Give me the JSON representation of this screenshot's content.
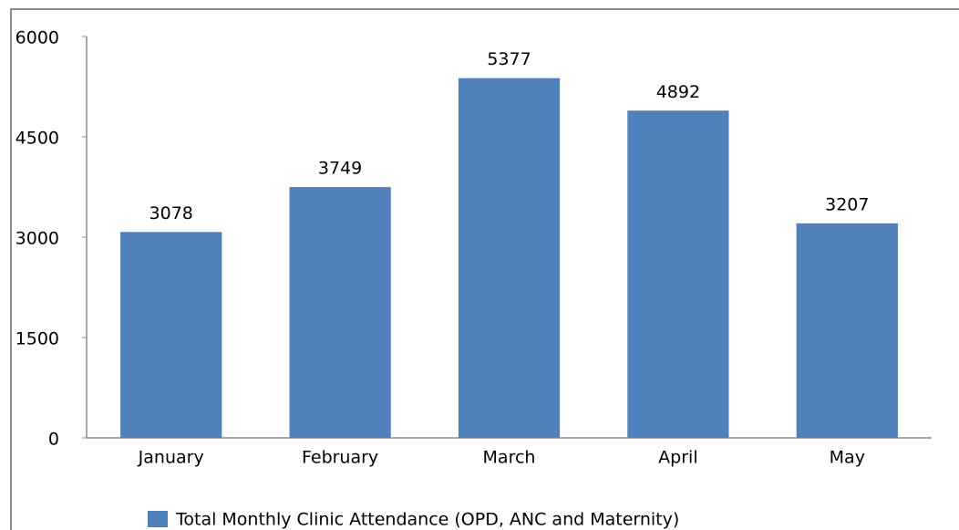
{
  "chart_data": {
    "type": "bar",
    "categories": [
      "January",
      "February",
      "March",
      "April",
      "May"
    ],
    "series": [
      {
        "name": "Total Monthly Clinic Attendance (OPD, ANC and Maternity)",
        "color": "#4f81bd",
        "values": [
          3078,
          3749,
          5377,
          4892,
          3207
        ]
      }
    ],
    "ylim": [
      0,
      6000
    ],
    "yticks": [
      0,
      1500,
      3000,
      4500,
      6000
    ],
    "grid": false,
    "legend": "bottom"
  }
}
